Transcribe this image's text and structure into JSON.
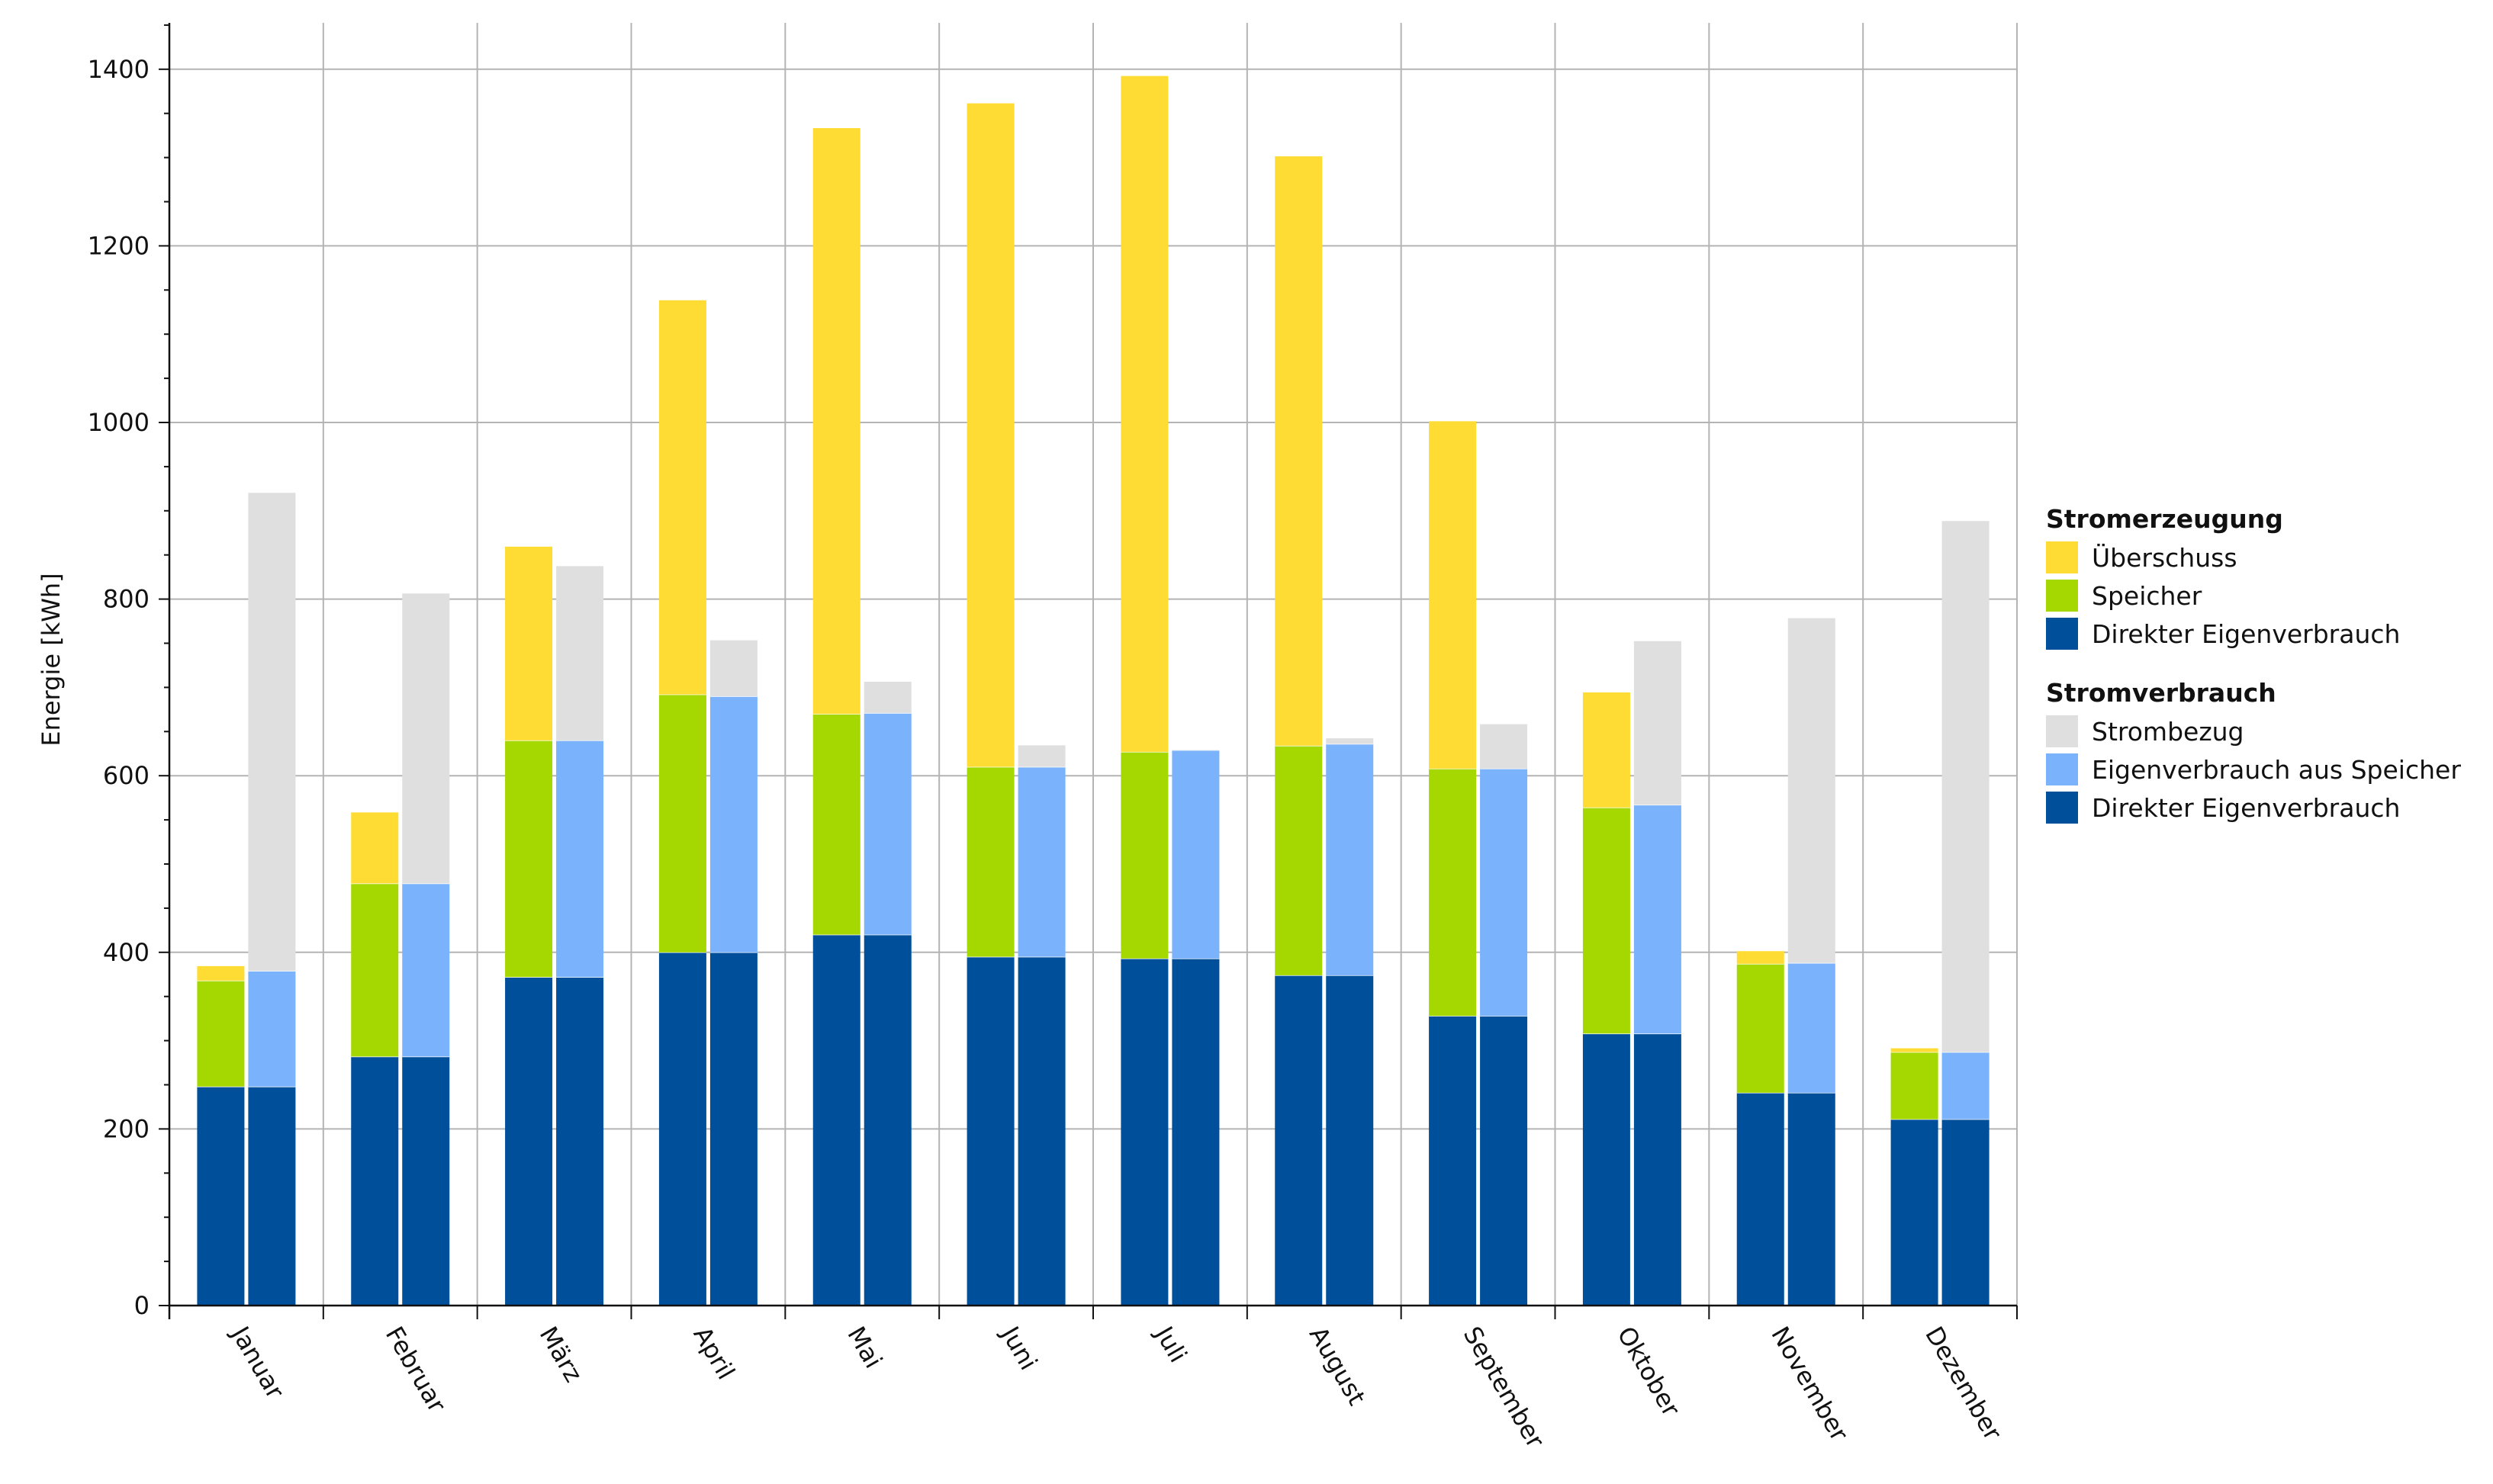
{
  "chart_data": {
    "type": "bar",
    "stacked": true,
    "grouped": true,
    "ylabel": "Energie [kWh]",
    "xlabel": "",
    "ylim": [
      0,
      1450
    ],
    "yticks": [
      0,
      200,
      400,
      600,
      800,
      1000,
      1200,
      1400
    ],
    "grid": true,
    "legend_position": "right",
    "categories": [
      "Januar",
      "Februar",
      "März",
      "April",
      "Mai",
      "Juni",
      "Juli",
      "August",
      "September",
      "Oktober",
      "November",
      "Dezember"
    ],
    "groups": [
      {
        "title": "Stromerzeugung",
        "series": [
          {
            "name": "Direkter Eigenverbrauch",
            "color": "#004f9a",
            "values": [
              248,
              282,
              372,
              400,
              420,
              395,
              393,
              374,
              328,
              308,
              241,
              211
            ]
          },
          {
            "name": "Speicher",
            "color": "#a5d700",
            "values": [
              120,
              196,
              268,
              292,
              250,
              215,
              234,
              260,
              280,
              256,
              146,
              76
            ]
          },
          {
            "name": "Überschuss",
            "color": "#ffdc33",
            "values": [
              17,
              81,
              220,
              447,
              664,
              752,
              766,
              668,
              394,
              131,
              15,
              5
            ]
          }
        ]
      },
      {
        "title": "Stromverbrauch",
        "series": [
          {
            "name": "Direkter Eigenverbrauch",
            "color": "#004f9a",
            "values": [
              248,
              282,
              372,
              400,
              420,
              395,
              393,
              374,
              328,
              308,
              241,
              211
            ]
          },
          {
            "name": "Eigenverbrauch aus Speicher",
            "color": "#7ab2fb",
            "values": [
              131,
              196,
              268,
              290,
              251,
              215,
              236,
              262,
              280,
              259,
              147,
              76
            ]
          },
          {
            "name": "Strombezug",
            "color": "#dfdfdf",
            "values": [
              542,
              329,
              198,
              64,
              36,
              25,
              1,
              7,
              51,
              186,
              391,
              602
            ]
          }
        ]
      }
    ],
    "legend": [
      {
        "title": "Stromerzeugung",
        "items": [
          {
            "name": "Überschuss",
            "color": "#ffdc33"
          },
          {
            "name": "Speicher",
            "color": "#a5d700"
          },
          {
            "name": "Direkter Eigenverbrauch",
            "color": "#004f9a"
          }
        ]
      },
      {
        "title": "Stromverbrauch",
        "items": [
          {
            "name": "Strombezug",
            "color": "#dfdfdf"
          },
          {
            "name": "Eigenverbrauch aus Speicher",
            "color": "#7ab2fb"
          },
          {
            "name": "Direkter Eigenverbrauch",
            "color": "#004f9a"
          }
        ]
      }
    ]
  }
}
